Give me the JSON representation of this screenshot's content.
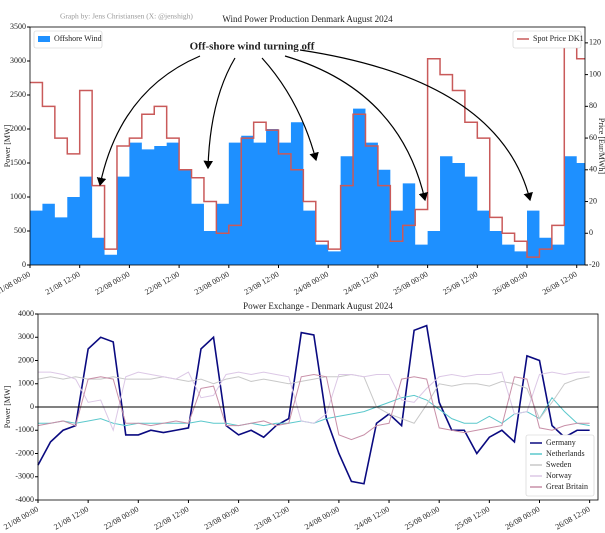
{
  "chart_data": [
    {
      "type": "line",
      "title": "Wind Power Production Denmark August 2024",
      "watermark": "Graph by: Jens Christiansen (X: @jenshigh)",
      "annotation": "Off-shore wind turning off",
      "ylabel": "Power [MW]",
      "y2label": "Price [Eur/MWh]",
      "x": [
        0,
        3,
        6,
        9,
        12,
        15,
        18,
        21,
        24,
        27,
        30,
        33,
        36,
        39,
        42,
        45,
        48,
        51,
        54,
        57,
        60,
        63,
        66,
        69,
        72,
        75,
        78,
        81,
        84,
        87,
        90,
        93,
        96,
        99,
        102,
        105,
        108,
        111,
        114,
        117,
        120,
        123,
        126,
        129,
        132
      ],
      "xlim": [
        0,
        134
      ],
      "xticks": [
        {
          "value": 0,
          "label": "21/08 00:00"
        },
        {
          "value": 12,
          "label": "21/08 12:00"
        },
        {
          "value": 24,
          "label": "22/08 00:00"
        },
        {
          "value": 36,
          "label": "22/08 12:00"
        },
        {
          "value": 48,
          "label": "23/08 00:00"
        },
        {
          "value": 60,
          "label": "23/08 12:00"
        },
        {
          "value": 72,
          "label": "24/08 00:00"
        },
        {
          "value": 84,
          "label": "24/08 12:00"
        },
        {
          "value": 96,
          "label": "25/08 00:00"
        },
        {
          "value": 108,
          "label": "25/08 12:00"
        },
        {
          "value": 120,
          "label": "26/08 00:00"
        },
        {
          "value": 132,
          "label": "26/08 12:00"
        }
      ],
      "ylim": [
        0,
        3500
      ],
      "yticks": [
        0,
        500,
        1000,
        1500,
        2000,
        2500,
        3000,
        3500
      ],
      "y2lim": [
        -20,
        130
      ],
      "y2ticks": [
        -20,
        0,
        20,
        40,
        60,
        80,
        100,
        120
      ],
      "legend": "upper left",
      "legend2": "upper right",
      "series": [
        {
          "name": "Offshore Wind",
          "color": "#1e90ff",
          "style": "area",
          "values": [
            800,
            900,
            700,
            1000,
            1300,
            400,
            150,
            1300,
            1800,
            1700,
            1750,
            1800,
            1400,
            900,
            500,
            900,
            1800,
            1900,
            1800,
            2000,
            1800,
            2100,
            800,
            300,
            200,
            1600,
            2300,
            1800,
            1400,
            800,
            1200,
            300,
            500,
            1600,
            1500,
            1300,
            800,
            500,
            300,
            200,
            800,
            400,
            300,
            1600,
            1500
          ]
        },
        {
          "name": "Spot Price DK1",
          "color": "#c95a5a",
          "style": "step",
          "axis": "y2",
          "values": [
            95,
            80,
            60,
            50,
            90,
            30,
            -10,
            55,
            60,
            75,
            80,
            60,
            40,
            35,
            20,
            0,
            5,
            60,
            70,
            65,
            50,
            40,
            20,
            -5,
            -10,
            30,
            75,
            55,
            30,
            -5,
            5,
            15,
            110,
            100,
            90,
            70,
            60,
            10,
            0,
            -5,
            -15,
            -10,
            5,
            120,
            110
          ]
        }
      ]
    },
    {
      "type": "line",
      "title": "Power Exchange - Denmark August 2024",
      "ylabel": "Power [MW]",
      "x": [
        0,
        3,
        6,
        9,
        12,
        15,
        18,
        21,
        24,
        27,
        30,
        33,
        36,
        39,
        42,
        45,
        48,
        51,
        54,
        57,
        60,
        63,
        66,
        69,
        72,
        75,
        78,
        81,
        84,
        87,
        90,
        93,
        96,
        99,
        102,
        105,
        108,
        111,
        114,
        117,
        120,
        123,
        126,
        129,
        132
      ],
      "xlim": [
        0,
        134
      ],
      "xticks": [
        {
          "value": 0,
          "label": "21/08 00:00"
        },
        {
          "value": 12,
          "label": "21/08 12:00"
        },
        {
          "value": 24,
          "label": "22/08 00:00"
        },
        {
          "value": 36,
          "label": "22/08 12:00"
        },
        {
          "value": 48,
          "label": "23/08 00:00"
        },
        {
          "value": 60,
          "label": "23/08 12:00"
        },
        {
          "value": 72,
          "label": "24/08 00:00"
        },
        {
          "value": 84,
          "label": "24/08 12:00"
        },
        {
          "value": 96,
          "label": "25/08 00:00"
        },
        {
          "value": 108,
          "label": "25/08 12:00"
        },
        {
          "value": 120,
          "label": "26/08 00:00"
        },
        {
          "value": 132,
          "label": "26/08 12:00"
        }
      ],
      "ylim": [
        -4000,
        4000
      ],
      "yticks": [
        -4000,
        -3000,
        -2000,
        -1000,
        0,
        1000,
        2000,
        3000,
        4000
      ],
      "legend": "lower right",
      "series": [
        {
          "name": "Germany",
          "color": "#0a0a80",
          "style": "line",
          "width": 1.6,
          "values": [
            -2500,
            -1500,
            -1000,
            -800,
            2500,
            3000,
            2800,
            -1200,
            -1200,
            -1000,
            -1100,
            -1000,
            -900,
            2500,
            3000,
            -800,
            -1200,
            -1000,
            -1300,
            -800,
            -500,
            3200,
            3100,
            -500,
            -2000,
            -3200,
            -3300,
            -700,
            -300,
            -800,
            3300,
            3500,
            200,
            -1000,
            -1000,
            -2000,
            -1300,
            -1000,
            -1500,
            2200,
            2000,
            -800,
            -1300,
            -1000,
            -1000
          ]
        },
        {
          "name": "Netherlands",
          "color": "#5bc8cc",
          "style": "line",
          "width": 1,
          "values": [
            -700,
            -700,
            -600,
            -700,
            -600,
            -500,
            -700,
            -800,
            -700,
            -700,
            -700,
            -700,
            -700,
            -600,
            -700,
            -700,
            -800,
            -700,
            -800,
            -700,
            -700,
            -600,
            -700,
            -500,
            -400,
            -300,
            -200,
            0,
            200,
            400,
            500,
            300,
            -100,
            -500,
            -700,
            -700,
            -400,
            -700,
            -300,
            -200,
            -500,
            400,
            -200,
            -700,
            -800
          ]
        },
        {
          "name": "Sweden",
          "color": "#c8c8c8",
          "style": "line",
          "width": 1,
          "values": [
            1200,
            1300,
            1200,
            1300,
            1200,
            1200,
            1300,
            1200,
            1200,
            1200,
            1300,
            1200,
            1100,
            1200,
            1000,
            1200,
            1300,
            1100,
            1200,
            1100,
            1000,
            1100,
            1200,
            1300,
            1300,
            1400,
            1300,
            0,
            -300,
            -500,
            -700,
            100,
            1000,
            900,
            1000,
            1000,
            900,
            1100,
            1000,
            800,
            -500,
            200,
            1000,
            1200,
            1300
          ]
        },
        {
          "name": "Norway",
          "color": "#dcc8e6",
          "style": "line",
          "width": 1,
          "values": [
            1500,
            1500,
            1400,
            1200,
            200,
            300,
            -1000,
            1300,
            1500,
            1400,
            1300,
            1200,
            1500,
            400,
            500,
            1400,
            1500,
            1400,
            1500,
            1400,
            1300,
            -600,
            -700,
            -300,
            1400,
            1400,
            1300,
            1400,
            1400,
            300,
            200,
            800,
            1300,
            1400,
            1300,
            1400,
            1400,
            1500,
            -300,
            -200,
            1400,
            1500,
            1400,
            1500,
            1500
          ]
        },
        {
          "name": "Great Britain",
          "color": "#c890a8",
          "style": "line",
          "width": 1,
          "values": [
            -800,
            -700,
            -600,
            -800,
            1200,
            1300,
            1200,
            -700,
            -700,
            -800,
            -700,
            -600,
            -700,
            800,
            900,
            -800,
            -800,
            -700,
            -600,
            -800,
            -700,
            1300,
            1400,
            1300,
            -1200,
            -1400,
            -1200,
            -800,
            -700,
            1200,
            1300,
            1200,
            -900,
            -1000,
            -1100,
            -1000,
            -900,
            -800,
            1300,
            1200,
            -900,
            -1000,
            -800,
            -700,
            -700
          ]
        }
      ]
    }
  ]
}
